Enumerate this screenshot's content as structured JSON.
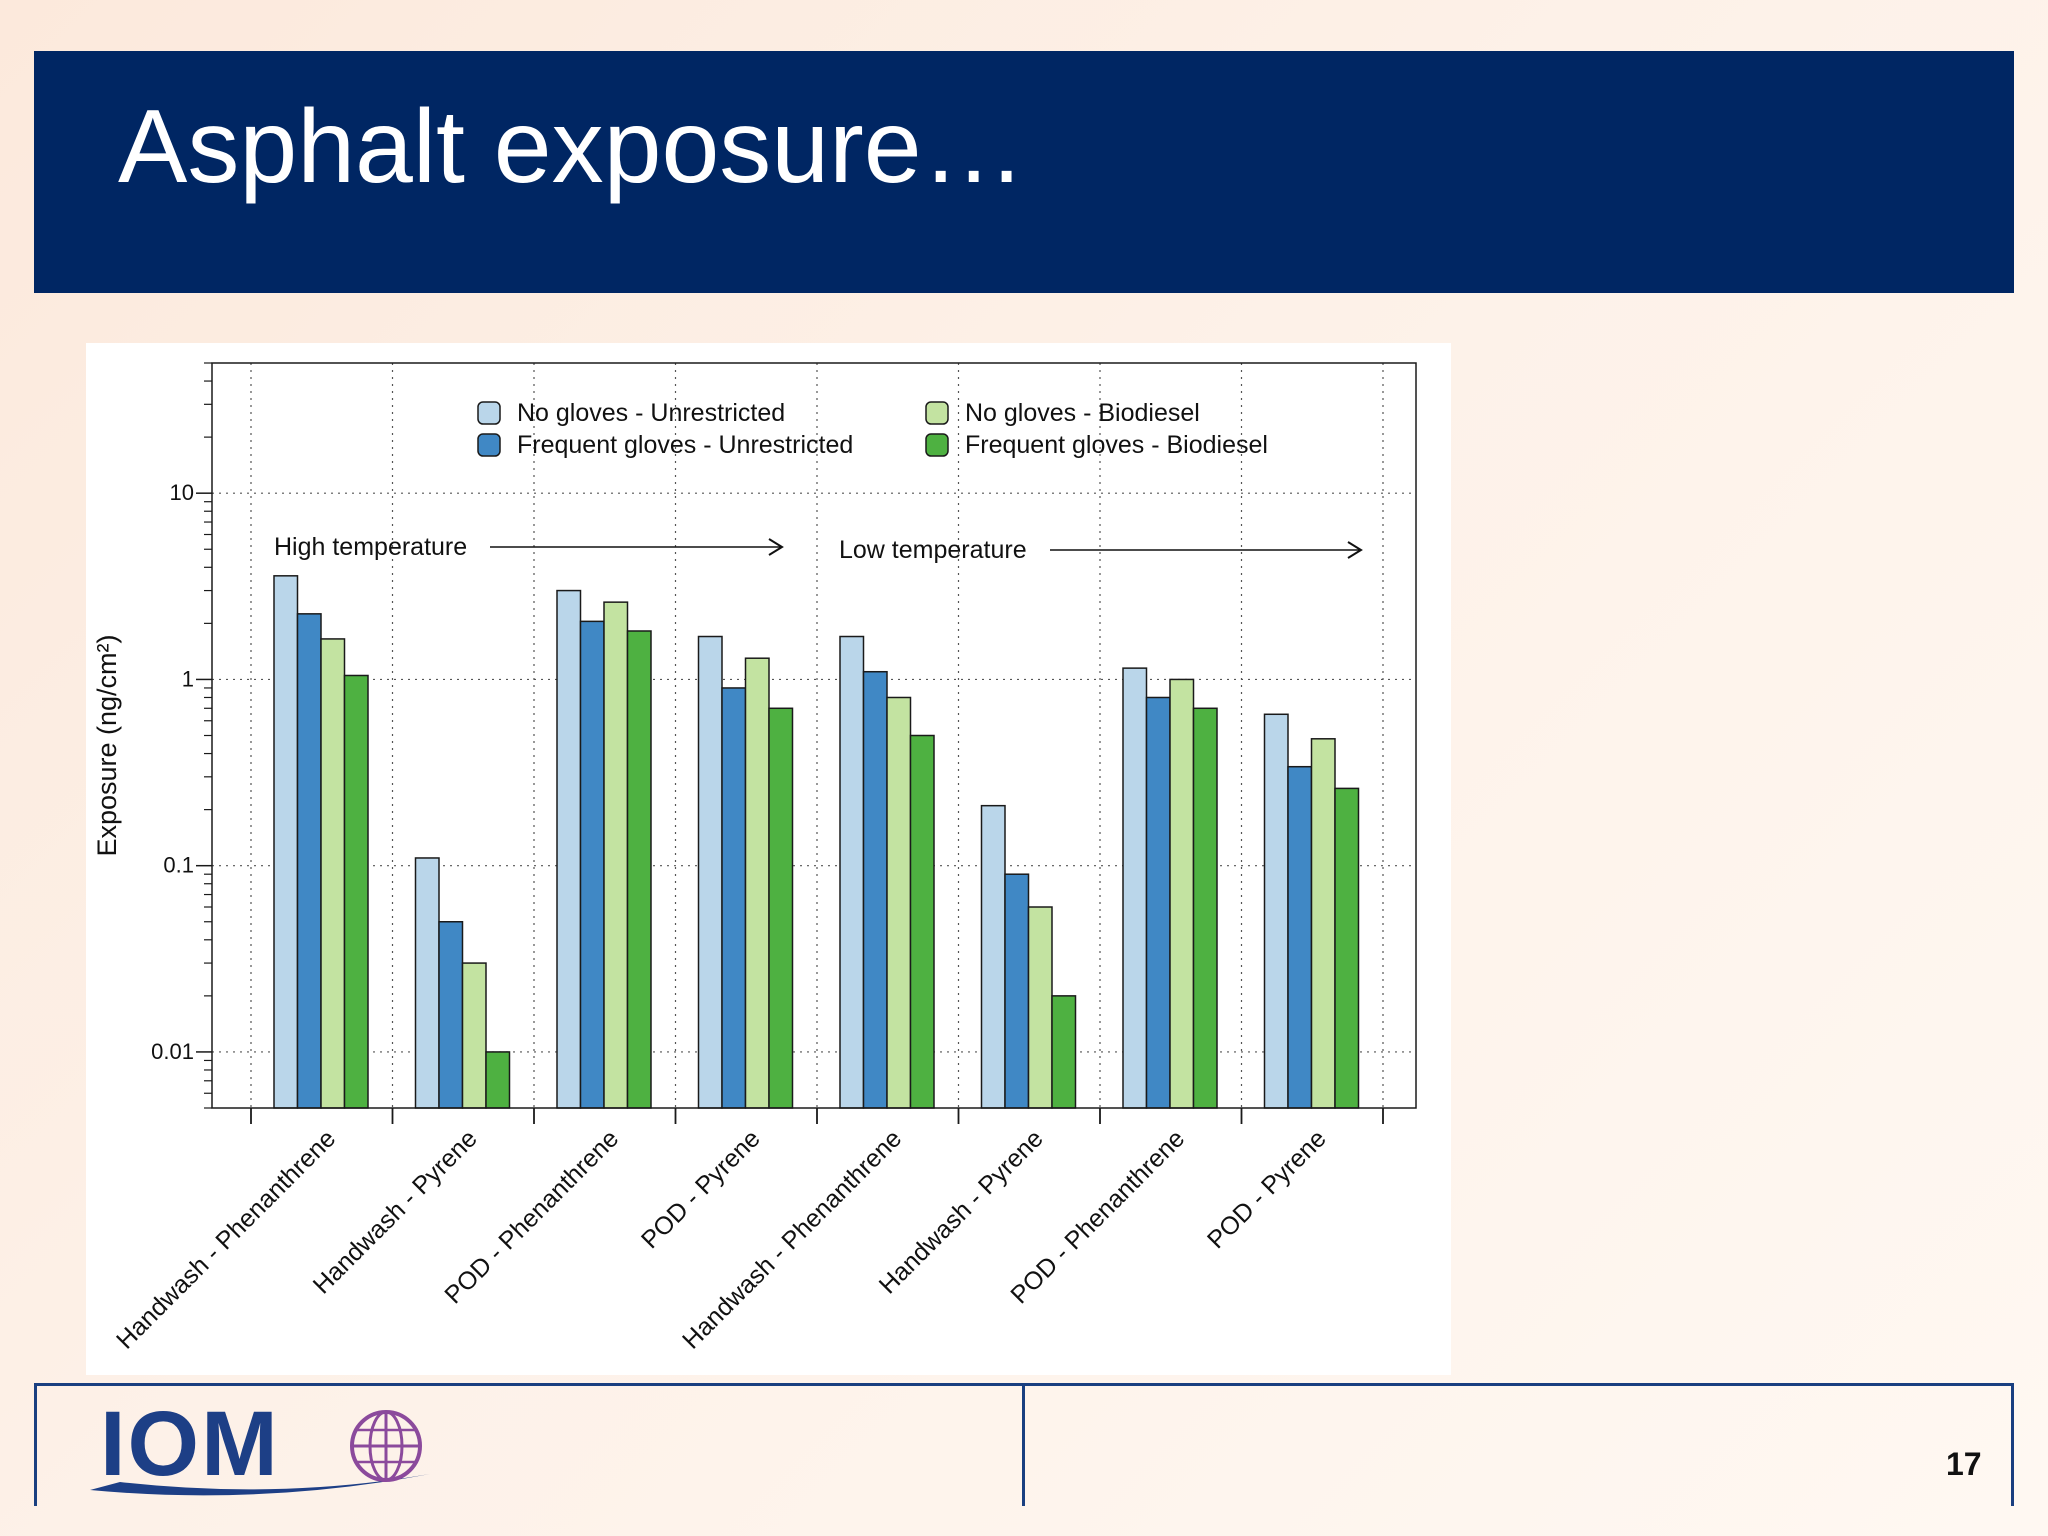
{
  "slide": {
    "title": "Asphalt exposure…",
    "page_number": "17",
    "logo_text": "IOM"
  },
  "chart_data": {
    "type": "bar",
    "ylabel": "Exposure (ng/cm²)",
    "yscale": "log",
    "ylim": [
      0.005,
      50
    ],
    "yticks": [
      0.01,
      0.1,
      1,
      10
    ],
    "ytick_labels": [
      "0.01",
      "0.1",
      "1",
      "10"
    ],
    "grid": true,
    "legend_position": "top",
    "categories": [
      "Handwash - Phenanthrene",
      "Handwash - Pyrene",
      "POD - Phenanthrene",
      "POD - Pyrene",
      "Handwash - Phenanthrene",
      "Handwash - Pyrene",
      "POD - Phenanthrene",
      "POD - Pyrene"
    ],
    "series": [
      {
        "name": "No gloves - Unrestricted",
        "color": "#bad6ea",
        "values": [
          3.6,
          0.11,
          3.0,
          1.7,
          1.7,
          0.21,
          1.15,
          0.65
        ]
      },
      {
        "name": "Frequent gloves - Unrestricted",
        "color": "#4088c5",
        "values": [
          2.25,
          0.05,
          2.05,
          0.9,
          1.1,
          0.09,
          0.8,
          0.34
        ]
      },
      {
        "name": "No gloves - Biodiesel",
        "color": "#c3e3a1",
        "values": [
          1.65,
          0.03,
          2.6,
          1.3,
          0.8,
          0.06,
          1.0,
          0.48
        ]
      },
      {
        "name": "Frequent gloves - Biodiesel",
        "color": "#4eb141",
        "values": [
          1.05,
          0.01,
          1.82,
          0.7,
          0.5,
          0.02,
          0.7,
          0.26
        ]
      }
    ],
    "annotations": [
      {
        "text": "High temperature",
        "group_start": 0,
        "group_end": 3
      },
      {
        "text": "Low temperature",
        "group_start": 4,
        "group_end": 7
      }
    ]
  }
}
